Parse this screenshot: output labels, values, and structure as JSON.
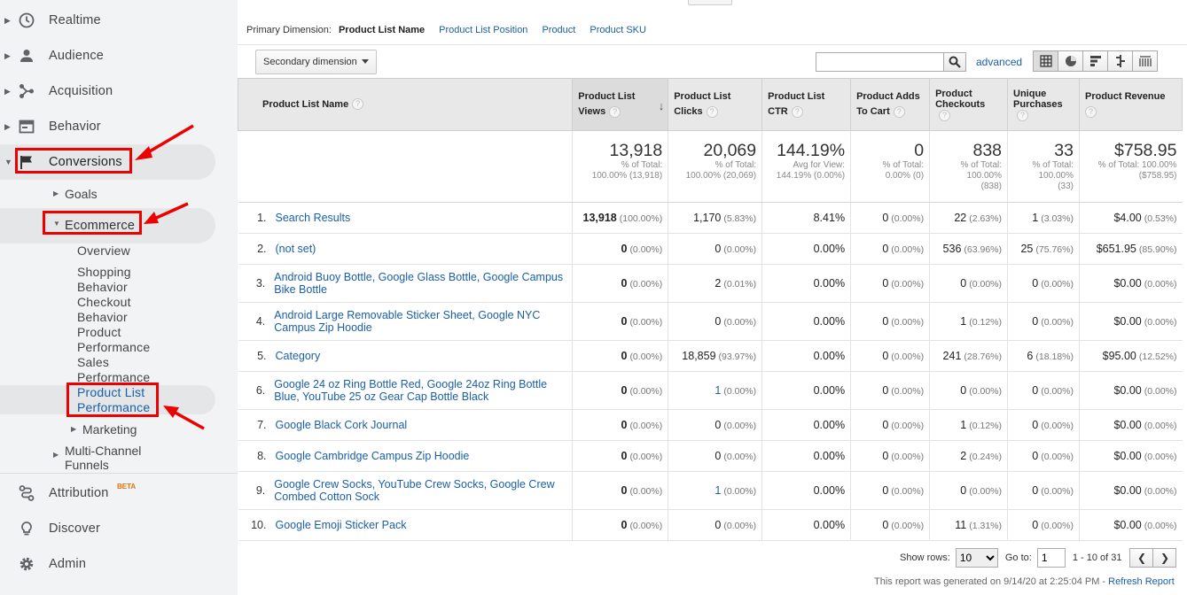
{
  "sidebar": {
    "realtime": "Realtime",
    "audience": "Audience",
    "acquisition": "Acquisition",
    "behavior": "Behavior",
    "conversions": "Conversions",
    "goals": "Goals",
    "ecommerce": "Ecommerce",
    "overview": "Overview",
    "shopping_behavior": "Shopping Behavior",
    "checkout_behavior": "Checkout Behavior",
    "product_performance": "Product Performance",
    "sales_performance": "Sales Performance",
    "product_list_performance": "Product List Performance",
    "marketing": "Marketing",
    "multi_channel": "Multi-Channel Funnels",
    "attribution": "Attribution",
    "beta": "BETA",
    "discover": "Discover",
    "admin": "Admin"
  },
  "dimensions": {
    "label": "Primary Dimension:",
    "selected": "Product List Name",
    "options": [
      "Product List Position",
      "Product",
      "Product SKU"
    ]
  },
  "toolbar": {
    "secondary_dimension": "Secondary dimension",
    "advanced": "advanced"
  },
  "table": {
    "headers": {
      "name": "Product List Name",
      "views": "Product List Views",
      "clicks": "Product List Clicks",
      "ctr": "Product List CTR",
      "adds": "Product Adds To Cart",
      "checkouts": "Product Checkouts",
      "purchases": "Unique Purchases",
      "revenue": "Product Revenue"
    },
    "totals": {
      "views": {
        "big": "13,918",
        "l1": "% of Total:",
        "l2": "100.00% (13,918)",
        "l3": ""
      },
      "clicks": {
        "big": "20,069",
        "l1": "% of Total:",
        "l2": "100.00% (20,069)",
        "l3": ""
      },
      "ctr": {
        "big": "144.19%",
        "l1": "Avg for View:",
        "l2": "144.19% (0.00%)",
        "l3": ""
      },
      "adds": {
        "big": "0",
        "l1": "% of Total:",
        "l2": "0.00% (0)",
        "l3": ""
      },
      "checkouts": {
        "big": "838",
        "l1": "% of Total:",
        "l2": "100.00%",
        "l3": "(838)"
      },
      "purchases": {
        "big": "33",
        "l1": "% of Total:",
        "l2": "100.00%",
        "l3": "(33)"
      },
      "revenue": {
        "big": "$758.95",
        "l1": "% of Total: 100.00%",
        "l2": "($758.95)",
        "l3": ""
      }
    },
    "rows": [
      {
        "idx": "1.",
        "name": "Search Results",
        "views": "13,918",
        "views_p": "(100.00%)",
        "clicks": "1,170",
        "clicks_p": "(5.83%)",
        "ctr": "8.41%",
        "adds": "0",
        "adds_p": "(0.00%)",
        "checkouts": "22",
        "checkouts_p": "(2.63%)",
        "purchases": "1",
        "purchases_p": "(3.03%)",
        "revenue": "$4.00",
        "revenue_p": "(0.53%)"
      },
      {
        "idx": "2.",
        "name": "(not set)",
        "views": "0",
        "views_p": "(0.00%)",
        "clicks": "0",
        "clicks_p": "(0.00%)",
        "ctr": "0.00%",
        "adds": "0",
        "adds_p": "(0.00%)",
        "checkouts": "536",
        "checkouts_p": "(63.96%)",
        "purchases": "25",
        "purchases_p": "(75.76%)",
        "revenue": "$651.95",
        "revenue_p": "(85.90%)"
      },
      {
        "idx": "3.",
        "name": "Android Buoy Bottle, Google Glass Bottle, Google Campus Bike Bottle",
        "views": "0",
        "views_p": "(0.00%)",
        "clicks": "2",
        "clicks_p": "(0.01%)",
        "ctr": "0.00%",
        "adds": "0",
        "adds_p": "(0.00%)",
        "checkouts": "0",
        "checkouts_p": "(0.00%)",
        "purchases": "0",
        "purchases_p": "(0.00%)",
        "revenue": "$0.00",
        "revenue_p": "(0.00%)"
      },
      {
        "idx": "4.",
        "name": "Android Large Removable Sticker Sheet, Google NYC Campus Zip Hoodie",
        "views": "0",
        "views_p": "(0.00%)",
        "clicks": "0",
        "clicks_p": "(0.00%)",
        "ctr": "0.00%",
        "adds": "0",
        "adds_p": "(0.00%)",
        "checkouts": "1",
        "checkouts_p": "(0.12%)",
        "purchases": "0",
        "purchases_p": "(0.00%)",
        "revenue": "$0.00",
        "revenue_p": "(0.00%)"
      },
      {
        "idx": "5.",
        "name": "Category",
        "views": "0",
        "views_p": "(0.00%)",
        "clicks": "18,859",
        "clicks_p": "(93.97%)",
        "ctr": "0.00%",
        "adds": "0",
        "adds_p": "(0.00%)",
        "checkouts": "241",
        "checkouts_p": "(28.76%)",
        "purchases": "6",
        "purchases_p": "(18.18%)",
        "revenue": "$95.00",
        "revenue_p": "(12.52%)"
      },
      {
        "idx": "6.",
        "name": "Google 24 oz Ring Bottle Red, Google 24oz Ring Bottle Blue, YouTube 25 oz Gear Cap Bottle Black",
        "views": "0",
        "views_p": "(0.00%)",
        "clicks": "1",
        "clicks_p": "(0.00%)",
        "ctr": "0.00%",
        "adds": "0",
        "adds_p": "(0.00%)",
        "checkouts": "0",
        "checkouts_p": "(0.00%)",
        "purchases": "0",
        "purchases_p": "(0.00%)",
        "revenue": "$0.00",
        "revenue_p": "(0.00%)"
      },
      {
        "idx": "7.",
        "name": "Google Black Cork Journal",
        "views": "0",
        "views_p": "(0.00%)",
        "clicks": "0",
        "clicks_p": "(0.00%)",
        "ctr": "0.00%",
        "adds": "0",
        "adds_p": "(0.00%)",
        "checkouts": "1",
        "checkouts_p": "(0.12%)",
        "purchases": "0",
        "purchases_p": "(0.00%)",
        "revenue": "$0.00",
        "revenue_p": "(0.00%)"
      },
      {
        "idx": "8.",
        "name": "Google Cambridge Campus Zip Hoodie",
        "views": "0",
        "views_p": "(0.00%)",
        "clicks": "0",
        "clicks_p": "(0.00%)",
        "ctr": "0.00%",
        "adds": "0",
        "adds_p": "(0.00%)",
        "checkouts": "2",
        "checkouts_p": "(0.24%)",
        "purchases": "0",
        "purchases_p": "(0.00%)",
        "revenue": "$0.00",
        "revenue_p": "(0.00%)"
      },
      {
        "idx": "9.",
        "name": "Google Crew Socks, YouTube Crew Socks, Google Crew Combed Cotton Sock",
        "views": "0",
        "views_p": "(0.00%)",
        "clicks": "1",
        "clicks_p": "(0.00%)",
        "ctr": "0.00%",
        "adds": "0",
        "adds_p": "(0.00%)",
        "checkouts": "0",
        "checkouts_p": "(0.00%)",
        "purchases": "0",
        "purchases_p": "(0.00%)",
        "revenue": "$0.00",
        "revenue_p": "(0.00%)"
      },
      {
        "idx": "10.",
        "name": "Google Emoji Sticker Pack",
        "views": "0",
        "views_p": "(0.00%)",
        "clicks": "0",
        "clicks_p": "(0.00%)",
        "ctr": "0.00%",
        "adds": "0",
        "adds_p": "(0.00%)",
        "checkouts": "11",
        "checkouts_p": "(1.31%)",
        "purchases": "0",
        "purchases_p": "(0.00%)",
        "revenue": "$0.00",
        "revenue_p": "(0.00%)"
      }
    ]
  },
  "pager": {
    "show_rows": "Show rows:",
    "rows_value": "10",
    "goto": "Go to:",
    "goto_value": "1",
    "range": "1 - 10 of 31"
  },
  "footer": {
    "text": "This report was generated on 9/14/20 at 2:25:04 PM - ",
    "refresh": "Refresh Report"
  },
  "colors": {
    "link": "#1a5fa8",
    "highlight": "#e00000"
  }
}
